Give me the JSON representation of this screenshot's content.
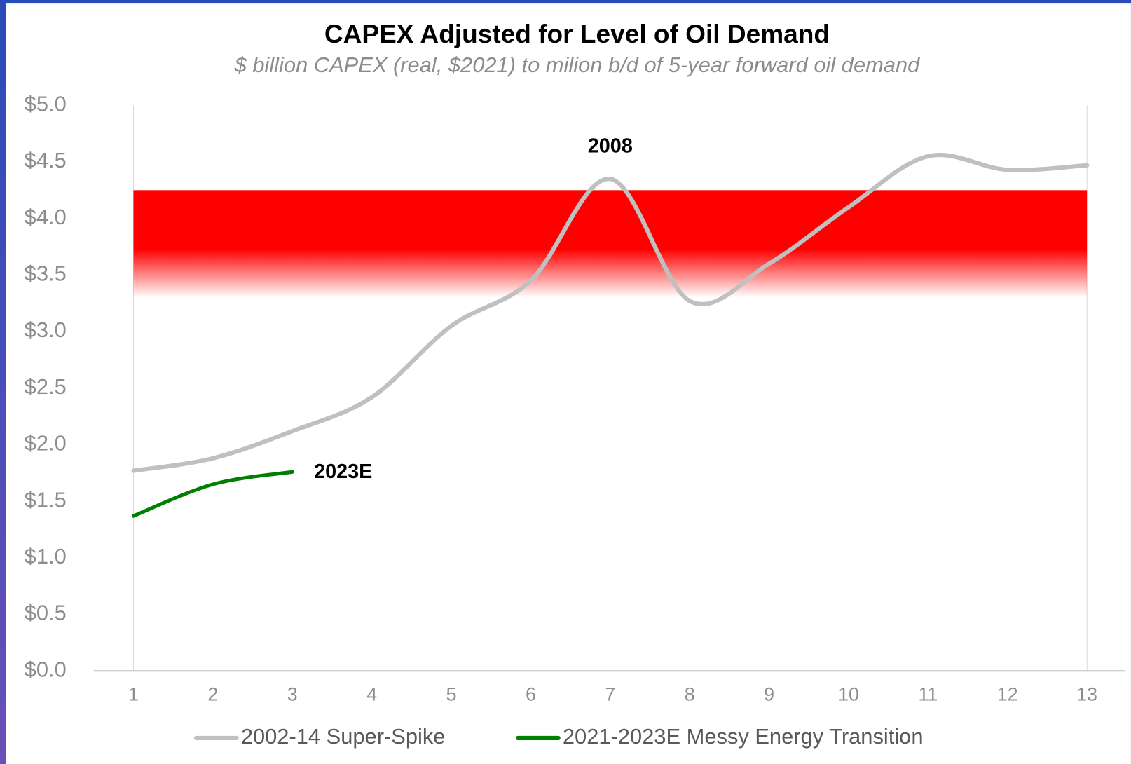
{
  "chart_data": {
    "type": "line",
    "title": "CAPEX Adjusted for Level of Oil Demand",
    "subtitle": "$ billion CAPEX (real, $2021) to milion b/d of 5-year forward oil demand",
    "series": [
      {
        "name": "2002-14 Super-Spike",
        "color": "#c0c0c0",
        "x": [
          1,
          2,
          3,
          4,
          5,
          6,
          7,
          8,
          9,
          10,
          11,
          12,
          13
        ],
        "values": [
          1.77,
          1.88,
          2.12,
          2.42,
          3.05,
          3.45,
          4.35,
          3.27,
          3.6,
          4.1,
          4.55,
          4.43,
          4.47
        ]
      },
      {
        "name": "2021-2023E Messy Energy Transition",
        "color": "#008000",
        "x": [
          1,
          2,
          3
        ],
        "values": [
          1.37,
          1.65,
          1.76
        ]
      }
    ],
    "annotations": [
      {
        "text": "2008",
        "x": 7
      },
      {
        "text": "2023E",
        "x": 3
      }
    ],
    "highlight_band": {
      "from": 3.3,
      "to": 4.25,
      "color": "#ff0000"
    },
    "xlim": [
      1,
      13
    ],
    "xticks": [
      1,
      2,
      3,
      4,
      5,
      6,
      7,
      8,
      9,
      10,
      11,
      12,
      13
    ],
    "ylim": [
      0,
      5
    ],
    "yticks": [
      {
        "value": 0,
        "label": "$0.0"
      },
      {
        "value": 0.5,
        "label": "$0.5"
      },
      {
        "value": 1,
        "label": "$1.0"
      },
      {
        "value": 1.5,
        "label": "$1.5"
      },
      {
        "value": 2,
        "label": "$2.0"
      },
      {
        "value": 2.5,
        "label": "$2.5"
      },
      {
        "value": 3,
        "label": "$3.0"
      },
      {
        "value": 3.5,
        "label": "$3.5"
      },
      {
        "value": 4,
        "label": "$4.0"
      },
      {
        "value": 4.5,
        "label": "$4.5"
      },
      {
        "value": 5,
        "label": "$5.0"
      }
    ],
    "legend": "bottom"
  }
}
